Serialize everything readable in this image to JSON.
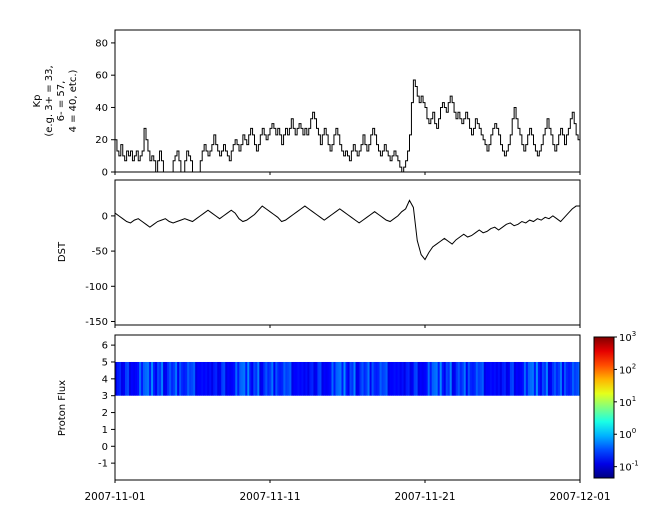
{
  "figure": {
    "background": "#ffffff",
    "line_color": "#000000",
    "xticks": [
      "2007-11-01",
      "2007-11-11",
      "2007-11-21",
      "2007-12-01"
    ]
  },
  "ylabels": {
    "kp_lines": [
      "Kp",
      "(e.g. 3+ = 33,",
      "6- = 57,",
      "4 = 40, etc.)"
    ],
    "dst": "DST",
    "flux": "Proton Flux"
  },
  "chart_data": [
    {
      "type": "line",
      "title": "",
      "ylabel": "Kp (e.g. 3+ = 33, 6- = 57, 4 = 40, etc.)",
      "xlabel": "",
      "x_start": "2007-11-01",
      "x_end": "2007-12-01",
      "x_tick_labels": [
        "2007-11-01",
        "2007-11-11",
        "2007-11-21",
        "2007-12-01"
      ],
      "ylim": [
        0,
        88
      ],
      "yticks": [
        0,
        20,
        40,
        60,
        80
      ],
      "step": true,
      "sample_interval_hours": 3,
      "values": [
        20,
        13,
        10,
        17,
        10,
        7,
        13,
        10,
        13,
        7,
        10,
        13,
        7,
        10,
        13,
        27,
        20,
        13,
        7,
        10,
        7,
        0,
        7,
        13,
        7,
        0,
        0,
        0,
        0,
        0,
        7,
        10,
        13,
        7,
        0,
        0,
        7,
        13,
        10,
        7,
        0,
        0,
        0,
        0,
        7,
        13,
        17,
        13,
        10,
        13,
        17,
        23,
        17,
        13,
        10,
        13,
        17,
        13,
        10,
        7,
        13,
        17,
        20,
        17,
        13,
        17,
        23,
        20,
        17,
        23,
        27,
        23,
        17,
        13,
        17,
        23,
        27,
        23,
        20,
        23,
        27,
        30,
        27,
        23,
        27,
        23,
        17,
        23,
        27,
        23,
        27,
        33,
        27,
        23,
        27,
        30,
        27,
        23,
        27,
        23,
        27,
        33,
        37,
        33,
        27,
        23,
        17,
        23,
        27,
        23,
        17,
        13,
        17,
        23,
        27,
        23,
        17,
        13,
        10,
        13,
        10,
        7,
        13,
        17,
        13,
        10,
        13,
        17,
        23,
        17,
        13,
        17,
        23,
        27,
        23,
        17,
        13,
        10,
        13,
        17,
        13,
        10,
        7,
        10,
        13,
        10,
        7,
        3,
        0,
        3,
        7,
        13,
        23,
        43,
        57,
        53,
        47,
        43,
        47,
        43,
        40,
        33,
        30,
        33,
        37,
        30,
        27,
        33,
        40,
        43,
        40,
        37,
        43,
        47,
        43,
        37,
        33,
        37,
        33,
        30,
        33,
        37,
        33,
        27,
        23,
        27,
        33,
        30,
        27,
        23,
        20,
        17,
        13,
        17,
        23,
        27,
        30,
        27,
        23,
        17,
        13,
        10,
        13,
        17,
        23,
        33,
        40,
        33,
        27,
        23,
        17,
        13,
        17,
        23,
        27,
        23,
        17,
        13,
        10,
        13,
        17,
        23,
        27,
        33,
        27,
        23,
        17,
        13,
        17,
        23,
        27,
        23,
        17,
        23,
        27,
        33,
        37,
        30,
        23,
        20
      ]
    },
    {
      "type": "line",
      "title": "",
      "ylabel": "DST",
      "xlabel": "",
      "x_start": "2007-11-01",
      "x_end": "2007-12-01",
      "ylim": [
        -155,
        51
      ],
      "yticks": [
        -150,
        -100,
        -50,
        0
      ],
      "step": false,
      "sample_interval_hours": 6,
      "values": [
        4,
        0,
        -4,
        -8,
        -10,
        -6,
        -4,
        -8,
        -12,
        -16,
        -12,
        -8,
        -6,
        -4,
        -8,
        -10,
        -8,
        -6,
        -4,
        -6,
        -8,
        -4,
        0,
        4,
        8,
        4,
        0,
        -4,
        0,
        4,
        8,
        4,
        -4,
        -8,
        -6,
        -2,
        2,
        8,
        14,
        10,
        6,
        2,
        -2,
        -8,
        -6,
        -2,
        2,
        6,
        10,
        14,
        10,
        6,
        2,
        -2,
        -6,
        -2,
        2,
        6,
        10,
        6,
        2,
        -2,
        -6,
        -10,
        -6,
        -2,
        2,
        6,
        2,
        -2,
        -6,
        -8,
        -4,
        0,
        6,
        10,
        22,
        12,
        -35,
        -55,
        -62,
        -52,
        -44,
        -40,
        -36,
        -32,
        -36,
        -40,
        -34,
        -30,
        -26,
        -30,
        -28,
        -24,
        -20,
        -24,
        -22,
        -18,
        -16,
        -20,
        -16,
        -12,
        -10,
        -14,
        -12,
        -8,
        -10,
        -6,
        -8,
        -4,
        -6,
        -2,
        -4,
        0,
        -4,
        -8,
        -2,
        4,
        10,
        14
      ]
    },
    {
      "type": "heatmap",
      "title": "",
      "ylabel": "Proton Flux",
      "xlabel": "",
      "x_start": "2007-11-01",
      "x_end": "2007-12-01",
      "ylim": [
        -2,
        6.6
      ],
      "yticks": [
        -1,
        0,
        1,
        2,
        3,
        4,
        5,
        6
      ],
      "band": {
        "ymin": 3,
        "ymax": 5,
        "log10_flux_base": -1.0,
        "log10_flux_texture": [
          0.1,
          0.45,
          0.2,
          0.6,
          0.15,
          0.3,
          0.7,
          0.25,
          0.1,
          0.5,
          0.35,
          0.15,
          0.65,
          0.2,
          0.4,
          0.1,
          0.55,
          0.3,
          0.2,
          0.75,
          0.15,
          0.35,
          0.6,
          0.25,
          0.1,
          0.45,
          0.3,
          0.65,
          0.2,
          0.15,
          0.5,
          0.35,
          0.7,
          0.25,
          0.4,
          0.1,
          0.6,
          0.3,
          0.15,
          0.55,
          0.2,
          0.45,
          0.8,
          0.25,
          0.35,
          0.15,
          0.5,
          0.3
        ]
      },
      "colorbar": {
        "scale": "log",
        "colormap": "jet",
        "tick_label_base": "10",
        "tick_exponents": [
          3,
          2,
          1,
          0,
          -1
        ],
        "range_exponents": [
          -1.35,
          3
        ]
      }
    }
  ]
}
